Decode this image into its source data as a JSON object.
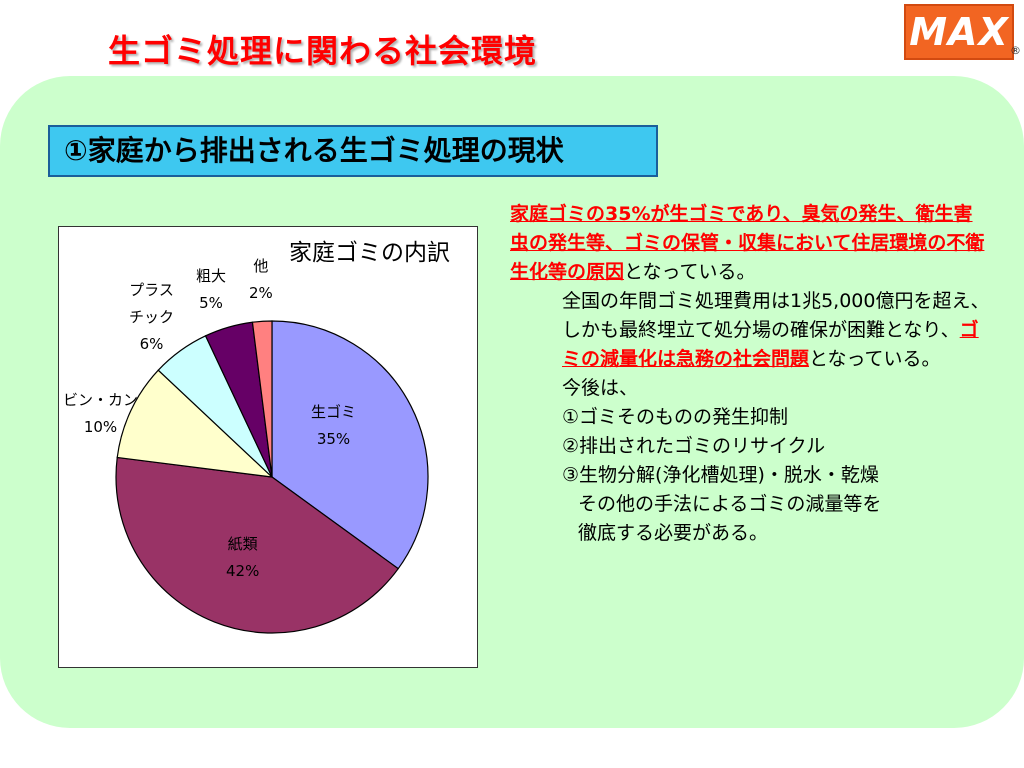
{
  "slide": {
    "title": "生ゴミ処理に関わる社会環境",
    "logo_text": "MAX",
    "logo_mark": "®",
    "subtitle": "①家庭から排出される生ゴミ処理の現状"
  },
  "colors": {
    "title_red": "#ff0000",
    "panel_bg": "#ccffcc",
    "subtitle_bg": "#3ec8f0",
    "logo_bg": "#f26522"
  },
  "chart_data": {
    "type": "pie",
    "title": "家庭ゴミの内訳",
    "slices": [
      {
        "name": "生ゴミ",
        "value": 35,
        "pct_label": "35%",
        "color": "#9999ff"
      },
      {
        "name": "紙類",
        "value": 42,
        "pct_label": "42%",
        "color": "#993366"
      },
      {
        "name": "ビン・カン",
        "value": 10,
        "pct_label": "10%",
        "color": "#ffffcc"
      },
      {
        "name": "プラスチック",
        "value": 6,
        "pct_label": "6%",
        "color": "#ccffff"
      },
      {
        "name": "粗大",
        "value": 5,
        "pct_label": "5%",
        "color": "#660066"
      },
      {
        "name": "他",
        "value": 2,
        "pct_label": "2%",
        "color": "#ff8080"
      }
    ],
    "label_lines": {
      "plastic_1": "プラス",
      "plastic_2": "チック"
    },
    "legend": "none"
  },
  "body": {
    "p1_red": "家庭ゴミの35%が生ゴミであり、臭気の発生、衛生害虫の発生等、ゴミの保管・収集において住居環境の不衛生化等の原因",
    "p1_tail": "となっている。",
    "p2_head": "全国の年間ゴミ処理費用は1兆5,000億円を超え、しかも最終埋立て処分場の確保が困難となり、",
    "p2_red": "ゴミの減量化は急務の社会問題",
    "p2_tail": "となっている。",
    "p3": "今後は、",
    "item1": "①ゴミそのものの発生抑制",
    "item2": "②排出されたゴミのリサイクル",
    "item3": "③生物分解(浄化槽処理)・脱水・乾燥",
    "item3_cont1": "その他の手法によるゴミの減量等を",
    "item3_cont2": "徹底する必要がある。"
  }
}
